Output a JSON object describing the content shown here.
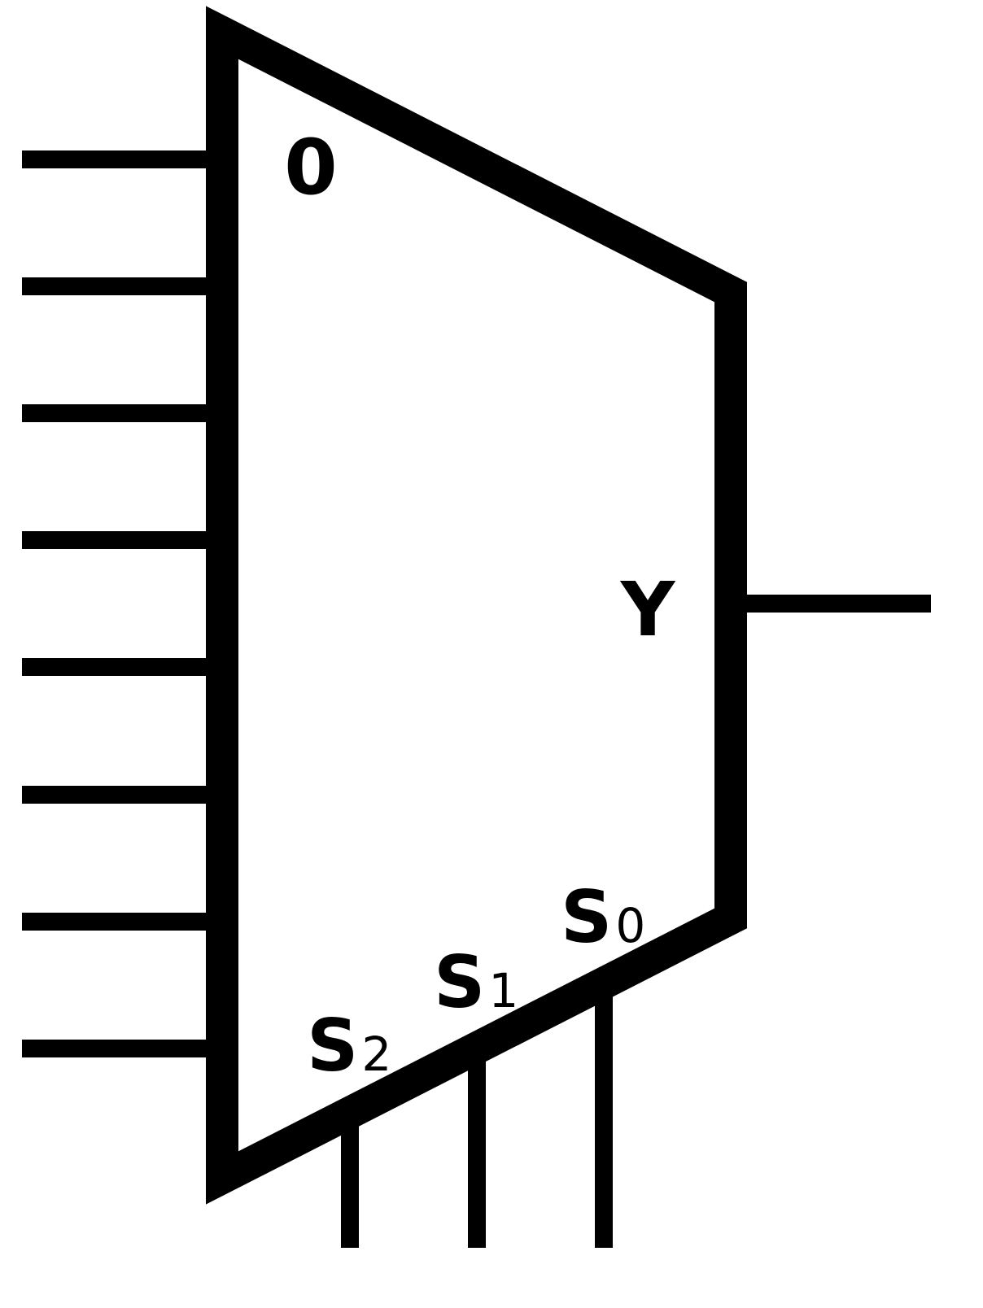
{
  "diagram": {
    "first_input_label": "0",
    "output_label": "Y",
    "select_lines": [
      {
        "base": "S",
        "index": "2"
      },
      {
        "base": "S",
        "index": "1"
      },
      {
        "base": "S",
        "index": "0"
      }
    ],
    "input_count": 8
  },
  "colors": {
    "stroke": "#000000",
    "background": "#ffffff"
  }
}
